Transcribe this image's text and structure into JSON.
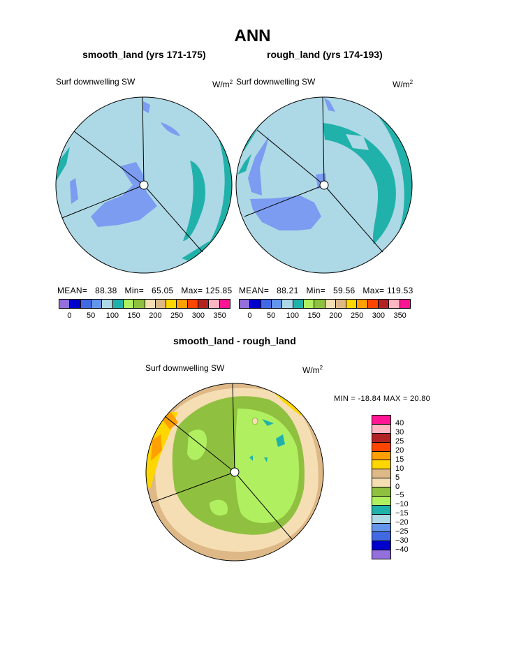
{
  "page": {
    "title": "ANN"
  },
  "top_panels": [
    {
      "title": "smooth_land (yrs 171-175)",
      "variable": "Surf downwelling SW",
      "units_base": "W/m",
      "units_exp": "2",
      "stats": {
        "mean_label": "MEAN=",
        "mean": "88.38",
        "min_label": "Min=",
        "min": "65.05",
        "max_label": "Max=",
        "max": "125.85"
      }
    },
    {
      "title": "rough_land (yrs 174-193)",
      "variable": "Surf downwelling SW",
      "units_base": "W/m",
      "units_exp": "2",
      "stats": {
        "mean_label": "MEAN=",
        "mean": "88.21",
        "min_label": "Min=",
        "min": "59.56",
        "max_label": "Max=",
        "max": "119.53"
      }
    }
  ],
  "top_colorbar": {
    "colors": [
      "#9370db",
      "#0000cd",
      "#4169e1",
      "#6495ed",
      "#add8e6",
      "#20b2aa",
      "#b0f060",
      "#90c040",
      "#f5deb3",
      "#deb887",
      "#ffd700",
      "#ff9f00",
      "#ff4500",
      "#b22222",
      "#ffb6c1",
      "#ff1493"
    ],
    "tick_labels": [
      "0",
      "50",
      "100",
      "150",
      "200",
      "250",
      "300",
      "350"
    ]
  },
  "diff_panel": {
    "title": "smooth_land - rough_land",
    "variable": "Surf downwelling SW",
    "units_base": "W/m",
    "units_exp": "2",
    "min_max_text": "MIN = -18.84  MAX =  20.80"
  },
  "diff_colorbar": {
    "colors_top_to_bottom": [
      "#ff1493",
      "#ffb6c1",
      "#b22222",
      "#ff4500",
      "#ff9f00",
      "#ffd700",
      "#deb887",
      "#f5deb3",
      "#90c040",
      "#b0f060",
      "#20b2aa",
      "#add8e6",
      "#6495ed",
      "#4169e1",
      "#0000cd",
      "#9370db"
    ],
    "labels_top_to_bottom": [
      "40",
      "30",
      "25",
      "20",
      "15",
      "10",
      "5",
      "0",
      "−5",
      "−10",
      "−15",
      "−20",
      "−25",
      "−30",
      "−40"
    ]
  },
  "chart_data": [
    {
      "type": "heatmap",
      "title": "smooth_land (yrs 171-175)",
      "subtitle": "Surf downwelling SW",
      "units": "W/m2",
      "projection": "polar",
      "mean": 88.38,
      "min": 65.05,
      "max": 125.85,
      "levels": [
        0,
        50,
        100,
        150,
        200,
        250,
        300,
        350
      ]
    },
    {
      "type": "heatmap",
      "title": "rough_land (yrs 174-193)",
      "subtitle": "Surf downwelling SW",
      "units": "W/m2",
      "projection": "polar",
      "mean": 88.21,
      "min": 59.56,
      "max": 119.53,
      "levels": [
        0,
        50,
        100,
        150,
        200,
        250,
        300,
        350
      ]
    },
    {
      "type": "heatmap",
      "title": "smooth_land - rough_land",
      "subtitle": "Surf downwelling SW",
      "units": "W/m2",
      "projection": "polar",
      "min": -18.84,
      "max": 20.8,
      "levels": [
        -40,
        -30,
        -25,
        -20,
        -15,
        -10,
        -5,
        0,
        5,
        10,
        15,
        20,
        25,
        30,
        40
      ]
    }
  ]
}
